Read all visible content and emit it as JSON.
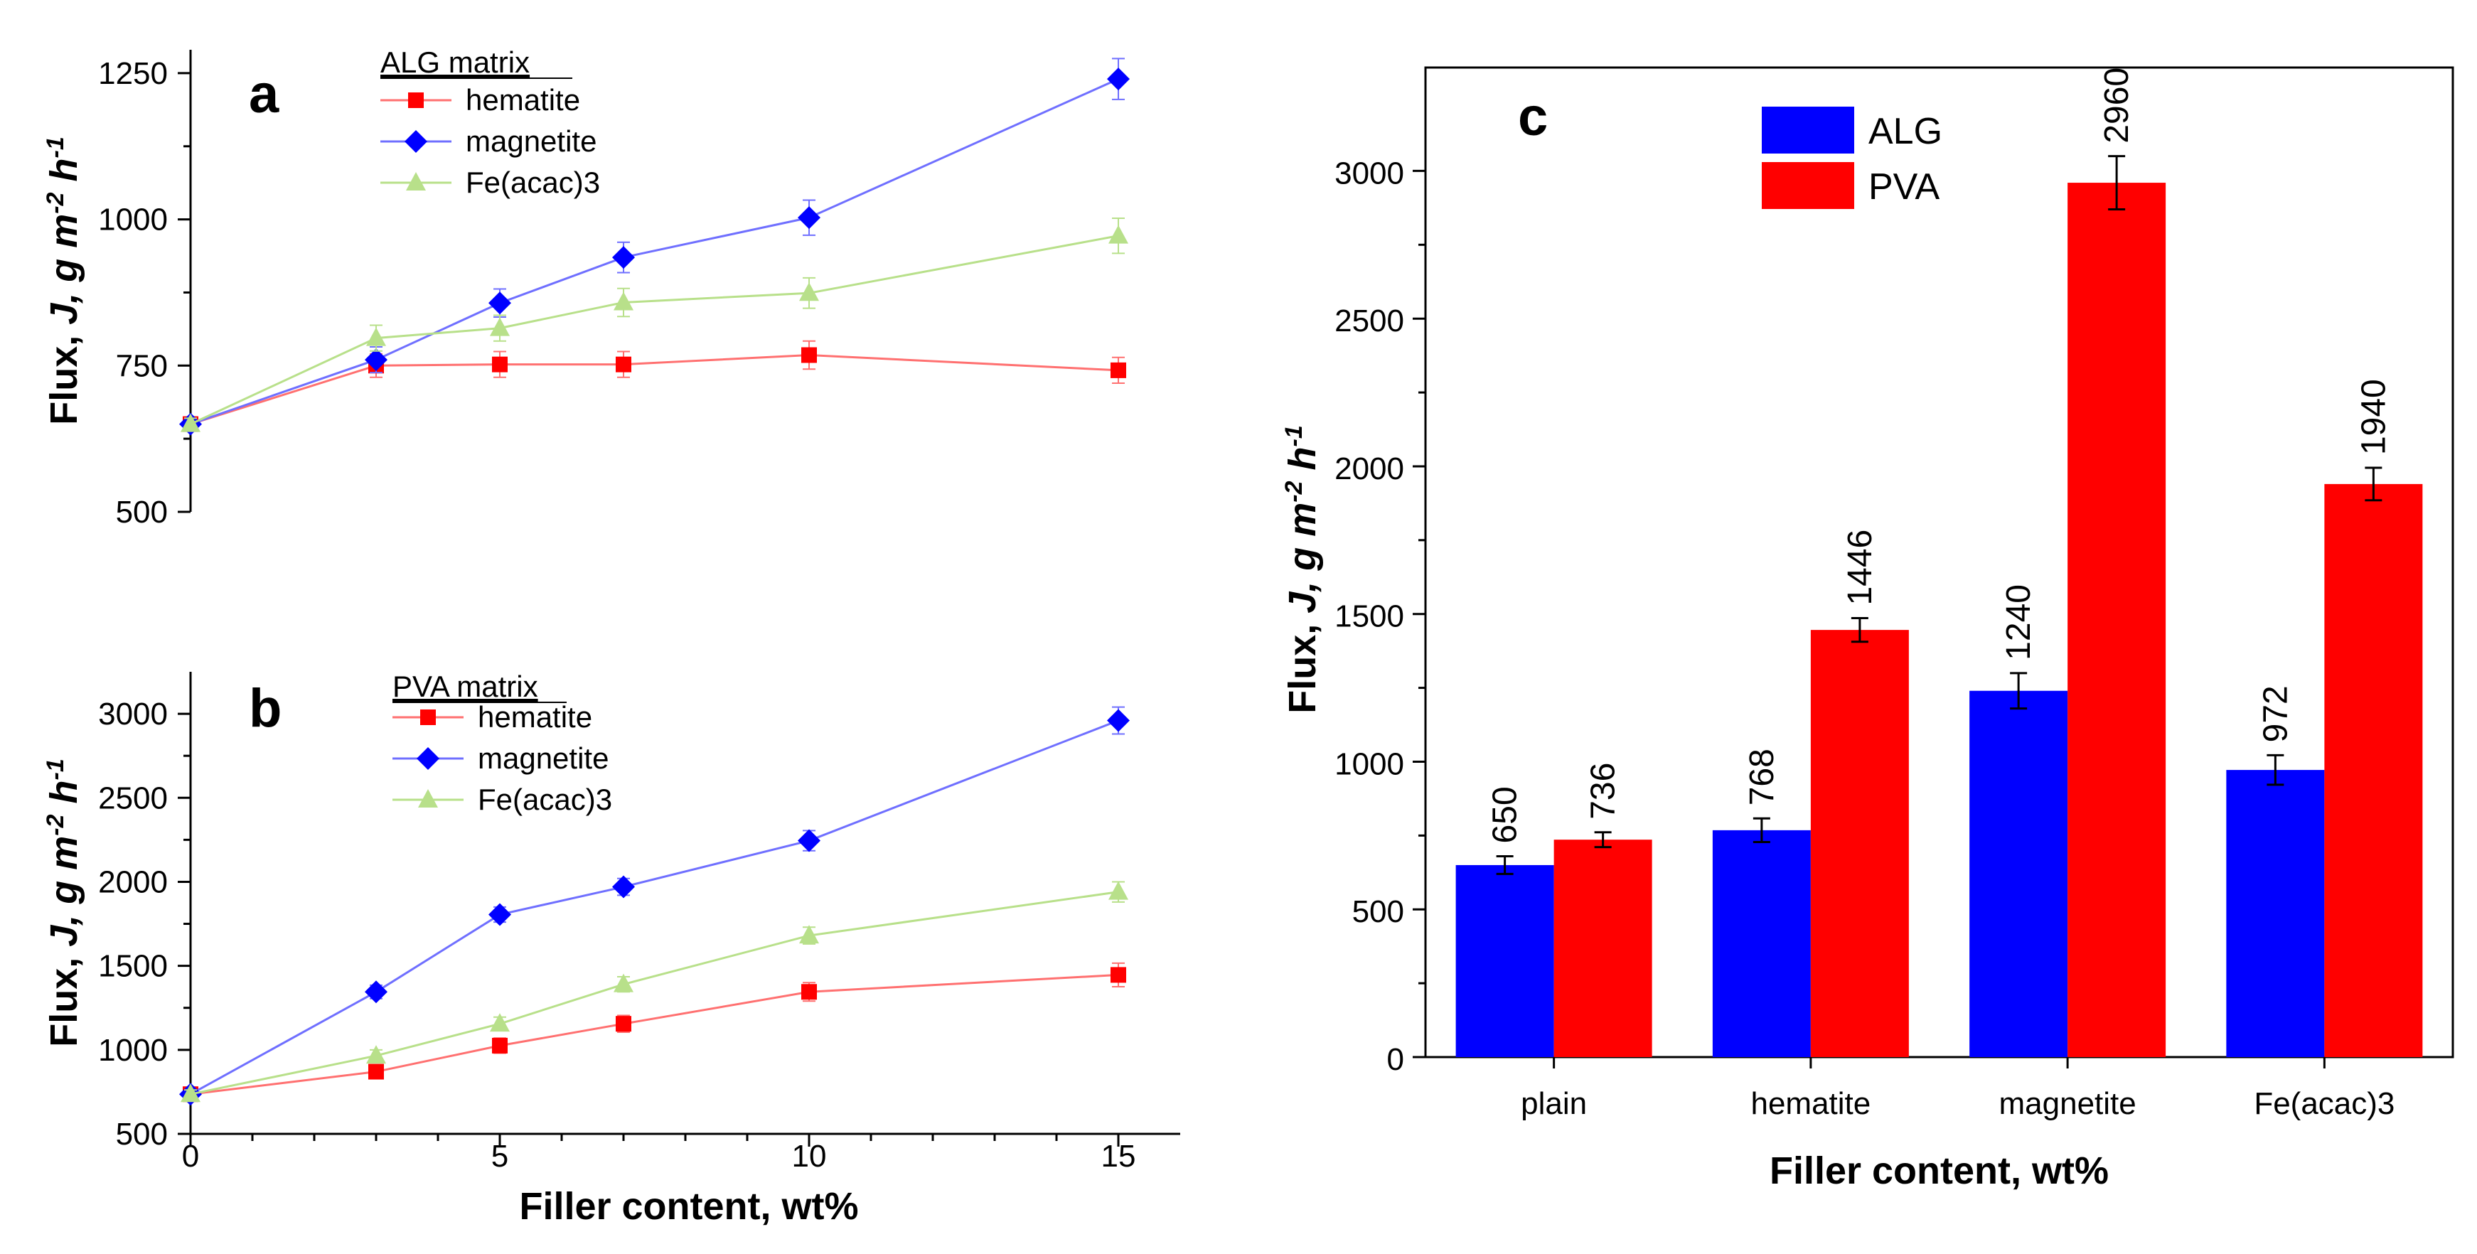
{
  "colors": {
    "hematite": "#ff0000",
    "hematite_line": "#ff7070",
    "magnetite": "#0000ff",
    "magnetite_line": "#6f6fff",
    "feacac": "#b8e08a",
    "alg": "#0000ff",
    "pva": "#ff0000"
  },
  "chart_data": [
    {
      "panel": "a",
      "type": "line",
      "title": "",
      "xlabel": "",
      "ylabel": "Flux, J, g m-2 h-1",
      "ylabel_parts": {
        "base": "Flux, ",
        "J": "J",
        "unit": ", g m",
        "exp1": "-2",
        "h": " h",
        "exp2": "-1"
      },
      "x": [
        0,
        3,
        5,
        7,
        10,
        15
      ],
      "xlim": [
        0,
        16
      ],
      "ylim": [
        500,
        1290
      ],
      "yticks": [
        500,
        750,
        1000,
        1250
      ],
      "xticks_labeled": false,
      "legend_title": "ALG matrix",
      "legend_position": "top-left",
      "series": [
        {
          "name": "hematite",
          "values": [
            650,
            750,
            752,
            752,
            768,
            742
          ],
          "errors": [
            10,
            20,
            22,
            22,
            24,
            22
          ],
          "marker": "square",
          "color_key": "hematite"
        },
        {
          "name": "magnetite",
          "values": [
            650,
            760,
            857,
            935,
            1003,
            1240
          ],
          "errors": [
            10,
            22,
            24,
            26,
            30,
            35
          ],
          "marker": "diamond",
          "color_key": "magnetite"
        },
        {
          "name": "Fe(acac)3",
          "values": [
            650,
            797,
            814,
            858,
            874,
            972
          ],
          "errors": [
            10,
            22,
            22,
            24,
            26,
            30
          ],
          "marker": "triangle",
          "color_key": "feacac"
        }
      ]
    },
    {
      "panel": "b",
      "type": "line",
      "title": "",
      "xlabel": "Filler content, wt%",
      "ylabel": "Flux, J, g m-2 h-1",
      "ylabel_parts": {
        "base": "Flux, ",
        "J": "J",
        "unit": ", g m",
        "exp1": "-2",
        "h": " h",
        "exp2": "-1"
      },
      "x": [
        0,
        3,
        5,
        7,
        10,
        15
      ],
      "xlim": [
        0,
        16
      ],
      "xticks": [
        0,
        5,
        10,
        15
      ],
      "ylim": [
        500,
        3250
      ],
      "yticks": [
        500,
        1000,
        1500,
        2000,
        2500,
        3000
      ],
      "legend_title": "PVA matrix",
      "legend_position": "top-left",
      "series": [
        {
          "name": "hematite",
          "values": [
            736,
            870,
            1025,
            1155,
            1345,
            1446
          ],
          "errors": [
            25,
            40,
            45,
            50,
            55,
            70
          ],
          "marker": "square",
          "color_key": "hematite"
        },
        {
          "name": "magnetite",
          "values": [
            736,
            1345,
            1805,
            1970,
            2245,
            2960
          ],
          "errors": [
            25,
            40,
            45,
            50,
            60,
            80
          ],
          "marker": "diamond",
          "color_key": "magnetite"
        },
        {
          "name": "Fe(acac)3",
          "values": [
            736,
            965,
            1155,
            1390,
            1680,
            1940
          ],
          "errors": [
            25,
            35,
            40,
            45,
            50,
            60
          ],
          "marker": "triangle",
          "color_key": "feacac"
        }
      ]
    },
    {
      "panel": "c",
      "type": "bar",
      "title": "",
      "xlabel": "Filler content, wt%",
      "ylabel": "Flux, J, g m-2 h-1",
      "ylabel_parts": {
        "base": "Flux, ",
        "J": "J",
        "unit": ", g m",
        "exp1": "-2",
        "h": " h",
        "exp2": "-1"
      },
      "categories": [
        "plain",
        "hematite",
        "magnetite",
        "Fe(acac)3"
      ],
      "ylim": [
        0,
        3350
      ],
      "yticks": [
        0,
        500,
        1000,
        1500,
        2000,
        2500,
        3000
      ],
      "legend_position": "top-left",
      "series": [
        {
          "name": "ALG",
          "values": [
            650,
            768,
            1240,
            972
          ],
          "errors": [
            30,
            40,
            60,
            50
          ],
          "labels": [
            "650",
            "768",
            "1240",
            "972"
          ],
          "color_key": "alg"
        },
        {
          "name": "PVA",
          "values": [
            736,
            1446,
            2960,
            1940
          ],
          "errors": [
            25,
            40,
            90,
            55
          ],
          "labels": [
            "736",
            "1446",
            "2960",
            "1940"
          ],
          "color_key": "pva"
        }
      ]
    }
  ]
}
